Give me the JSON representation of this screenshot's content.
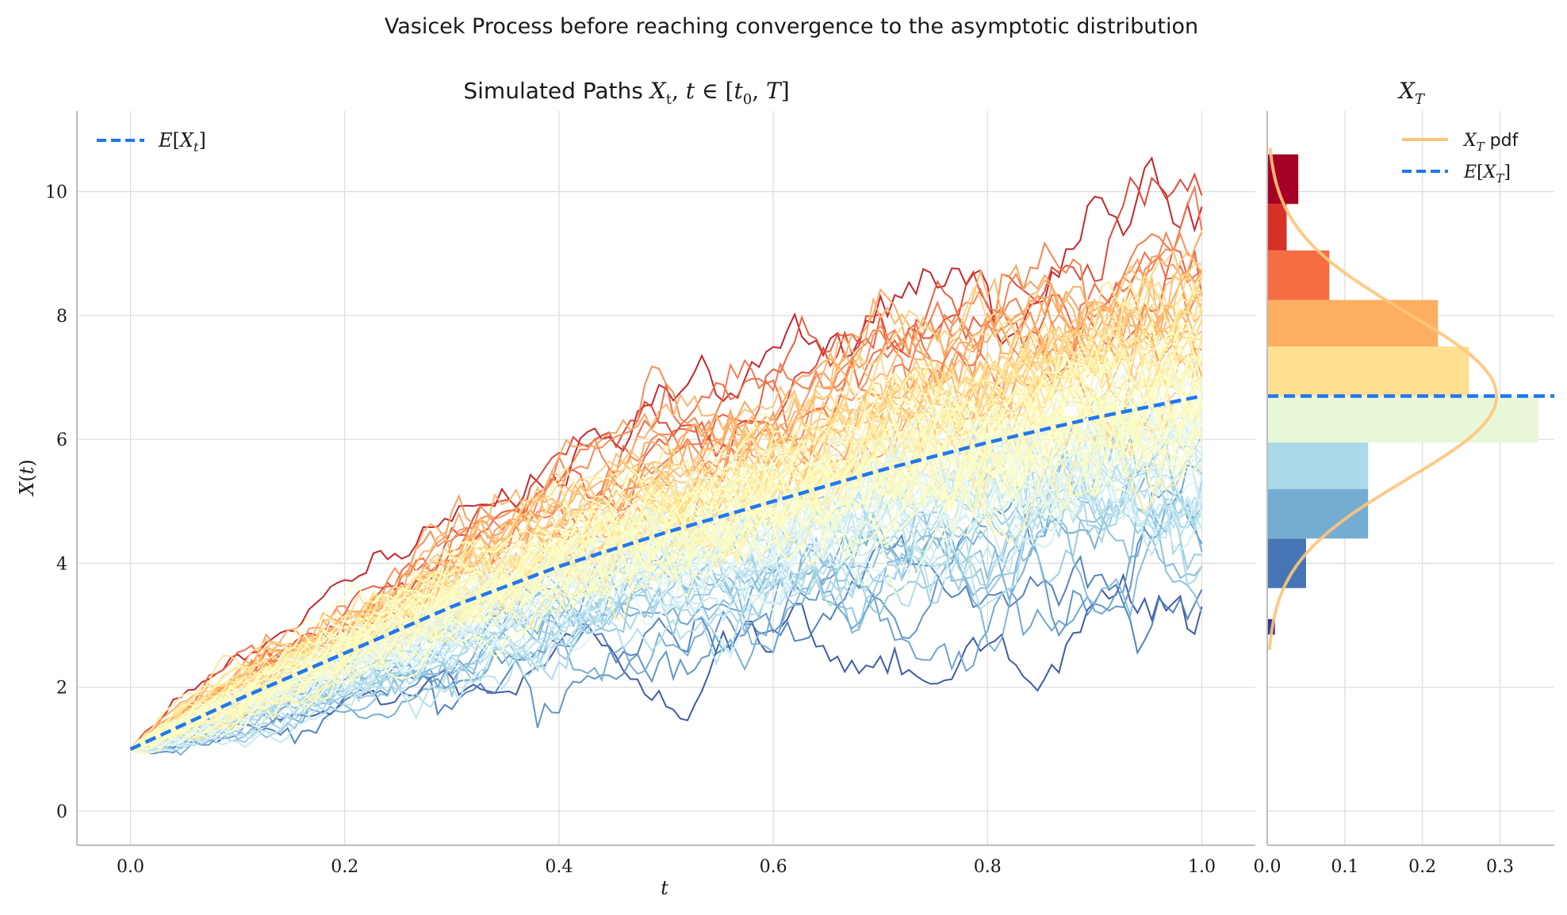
{
  "figure": {
    "suptitle": "Vasicek Process before reaching convergence to the asymptotic distribution"
  },
  "chart_data": [
    {
      "type": "line",
      "title": "Simulated Paths X_t, t ∈ [t_0, T]",
      "xlabel": "t",
      "ylabel": "X(t)",
      "xlim": [
        -0.05,
        1.05
      ],
      "ylim": [
        -0.55,
        11.3
      ],
      "xticks": [
        "0.0",
        "0.2",
        "0.4",
        "0.6",
        "0.8",
        "1.0"
      ],
      "yticks": [
        "0",
        "2",
        "4",
        "6",
        "8",
        "10"
      ],
      "grid": true,
      "legend": {
        "placement": "top-left",
        "entries": [
          "E[X_t]"
        ]
      },
      "x0": 1.0,
      "mean_series": {
        "name": "E[X_t]",
        "color": "#1f77f0",
        "x": [
          0.0,
          0.1,
          0.2,
          0.3,
          0.4,
          0.5,
          0.6,
          0.7,
          0.8,
          0.9,
          1.0
        ],
        "y": [
          1.0,
          1.8,
          2.55,
          3.3,
          3.95,
          4.5,
          5.0,
          5.5,
          5.95,
          6.35,
          6.7
        ]
      },
      "paths_summary": {
        "count": 100,
        "final_values_range": [
          2.9,
          10.6
        ],
        "colormap": "RdYlBu_r"
      }
    },
    {
      "type": "bar",
      "orientation": "horizontal",
      "title": "X_T",
      "xticks": [
        "0.0",
        "0.1",
        "0.2",
        "0.3"
      ],
      "xlim": [
        0,
        0.37
      ],
      "legend": {
        "placement": "top-right",
        "entries": [
          "X_T pdf",
          "E[X_T]"
        ]
      },
      "bins": [
        {
          "y0": 2.85,
          "y1": 3.1,
          "density": 0.01,
          "color": "#313695"
        },
        {
          "y0": 3.6,
          "y1": 4.4,
          "density": 0.05,
          "color": "#4575b4"
        },
        {
          "y0": 4.4,
          "y1": 5.2,
          "density": 0.13,
          "color": "#74add1"
        },
        {
          "y0": 5.2,
          "y1": 5.95,
          "density": 0.13,
          "color": "#abd9e9"
        },
        {
          "y0": 5.95,
          "y1": 6.7,
          "density": 0.35,
          "color": "#e9f7d9"
        },
        {
          "y0": 6.7,
          "y1": 7.5,
          "density": 0.26,
          "color": "#fee090"
        },
        {
          "y0": 7.5,
          "y1": 8.25,
          "density": 0.22,
          "color": "#fdae61"
        },
        {
          "y0": 8.25,
          "y1": 9.05,
          "density": 0.08,
          "color": "#f46d43"
        },
        {
          "y0": 9.05,
          "y1": 9.8,
          "density": 0.025,
          "color": "#d73027"
        },
        {
          "y0": 9.8,
          "y1": 10.6,
          "density": 0.04,
          "color": "#a50026"
        }
      ],
      "pdf": {
        "name": "X_T pdf",
        "mean": 6.7,
        "std": 1.35,
        "color": "#fdc57a"
      },
      "mean_line": {
        "name": "E[X_T]",
        "value": 6.7,
        "color": "#1f77f0"
      }
    }
  ]
}
